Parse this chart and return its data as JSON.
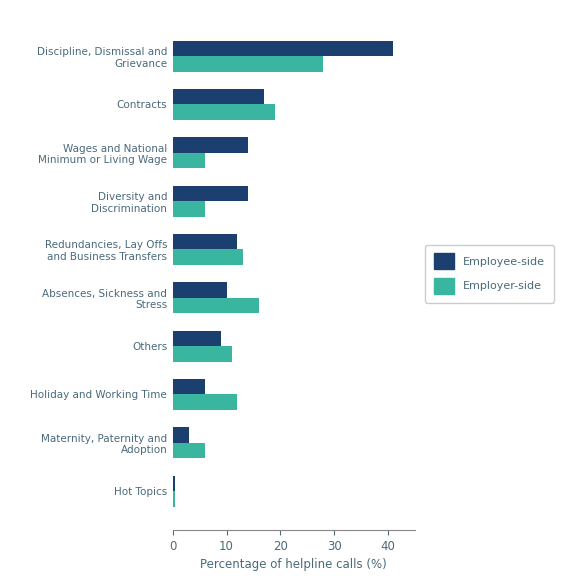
{
  "categories": [
    "Discipline, Dismissal and\nGrievance",
    "Contracts",
    "Wages and National\nMinimum or Living Wage",
    "Diversity and\nDiscrimination",
    "Redundancies, Lay Offs\nand Business Transfers",
    "Absences, Sickness and\nStress",
    "Others",
    "Holiday and Working Time",
    "Maternity, Paternity and\nAdoption",
    "Hot Topics"
  ],
  "employee_values": [
    41,
    17,
    14,
    14,
    12,
    10,
    9,
    6,
    3,
    0.5
  ],
  "employer_values": [
    28,
    19,
    6,
    6,
    13,
    16,
    11,
    12,
    6,
    0.5
  ],
  "employee_color": "#1b3f6e",
  "employer_color": "#3ab5a0",
  "xlabel": "Percentage of helpline calls (%)",
  "legend_employee": "Employee-side",
  "legend_employer": "Employer-side",
  "xlim": [
    0,
    45
  ],
  "bar_height": 0.32,
  "label_color": "#4a6a7a",
  "label_fontsize": 7.5,
  "xlabel_fontsize": 8.5,
  "background_color": "#ffffff"
}
